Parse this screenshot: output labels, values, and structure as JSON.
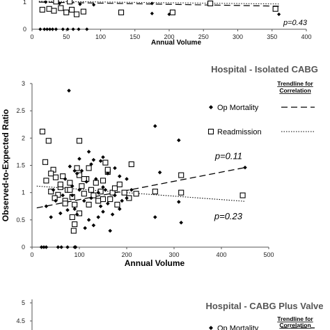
{
  "panels": {
    "top": {
      "xlabel": "Annual Volume",
      "pvalue": "p=0.43",
      "yticks": [
        "0",
        "1"
      ]
    },
    "bottom": {
      "title": "Hospital - CABG Plus Valve",
      "legend_header_line1": "Trendline for",
      "legend_header_line2": "Correlation",
      "legend_mortality": "Op Mortality",
      "yticks": [
        "5",
        "4.5"
      ]
    }
  },
  "chart_data": {
    "type": "scatter",
    "title": "Hospital - Isolated CABG",
    "xlabel": "Annual Volume",
    "ylabel": "Observed-to-Expected Ratio",
    "xlim": [
      0,
      500
    ],
    "ylim": [
      0,
      3
    ],
    "xticks": [
      0,
      100,
      200,
      300,
      400,
      500
    ],
    "yticks": [
      0,
      0.5,
      1,
      1.5,
      2,
      2.5,
      3
    ],
    "legend_header": [
      "Trendline for",
      "Correlation"
    ],
    "legend_placement": "top-right",
    "series": [
      {
        "name": "Op Mortality",
        "marker": "diamond",
        "color": "#000000",
        "trendline": "dashed",
        "pvalue": "p=0.11",
        "trend": [
          [
            10,
            0.72
          ],
          [
            450,
            1.46
          ]
        ],
        "points": [
          [
            20,
            0
          ],
          [
            25,
            0
          ],
          [
            30,
            0
          ],
          [
            55,
            0
          ],
          [
            62,
            0
          ],
          [
            75,
            0
          ],
          [
            90,
            0
          ],
          [
            92,
            0
          ],
          [
            78,
            2.87
          ],
          [
            260,
            2.22
          ],
          [
            310,
            1.96
          ],
          [
            270,
            1.37
          ],
          [
            310,
            0.83
          ],
          [
            315,
            0.45
          ],
          [
            260,
            0.55
          ],
          [
            450,
            1.46
          ],
          [
            40,
            0.55
          ],
          [
            60,
            0.62
          ],
          [
            75,
            0.68
          ],
          [
            30,
            0.75
          ],
          [
            50,
            0.85
          ],
          [
            65,
            0.95
          ],
          [
            45,
            1.05
          ],
          [
            85,
            1.12
          ],
          [
            70,
            1.25
          ],
          [
            95,
            1.35
          ],
          [
            80,
            1.48
          ],
          [
            100,
            1.62
          ],
          [
            120,
            1.75
          ],
          [
            90,
            0.7
          ],
          [
            110,
            0.85
          ],
          [
            125,
            0.9
          ],
          [
            140,
            1.0
          ],
          [
            150,
            1.1
          ],
          [
            135,
            1.25
          ],
          [
            160,
            1.35
          ],
          [
            175,
            1.45
          ],
          [
            150,
            1.65
          ],
          [
            130,
            1.6
          ],
          [
            105,
            1.4
          ],
          [
            115,
            1.2
          ],
          [
            100,
            1.05
          ],
          [
            85,
            0.95
          ],
          [
            95,
            0.6
          ],
          [
            120,
            0.5
          ],
          [
            130,
            0.4
          ],
          [
            145,
            0.75
          ],
          [
            165,
            0.3
          ],
          [
            170,
            0.6
          ],
          [
            185,
            0.7
          ],
          [
            190,
            0.85
          ],
          [
            200,
            0.9
          ],
          [
            210,
            1.05
          ],
          [
            200,
            1.25
          ],
          [
            185,
            1.3
          ],
          [
            175,
            0.95
          ],
          [
            160,
            0.8
          ],
          [
            150,
            0.65
          ],
          [
            140,
            0.55
          ],
          [
            112,
            0.35
          ],
          [
            125,
            1.52
          ],
          [
            145,
            1.58
          ],
          [
            155,
            1.05
          ],
          [
            90,
            1.4
          ]
        ]
      },
      {
        "name": "Readmission",
        "marker": "square",
        "color": "#000000",
        "trendline": "dotted",
        "pvalue": "p=0.23",
        "trend": [
          [
            10,
            1.12
          ],
          [
            450,
            0.84
          ]
        ],
        "points": [
          [
            22,
            2.12
          ],
          [
            35,
            1.95
          ],
          [
            28,
            1.56
          ],
          [
            45,
            1.42
          ],
          [
            30,
            1.22
          ],
          [
            50,
            1.28
          ],
          [
            40,
            1.02
          ],
          [
            60,
            1.1
          ],
          [
            55,
            0.96
          ],
          [
            70,
            0.85
          ],
          [
            65,
            1.3
          ],
          [
            75,
            1.05
          ],
          [
            80,
            1.18
          ],
          [
            85,
            0.92
          ],
          [
            90,
            0.78
          ],
          [
            85,
            0.55
          ],
          [
            90,
            0.42
          ],
          [
            88,
            0.3
          ],
          [
            95,
            1.45
          ],
          [
            100,
            1.32
          ],
          [
            105,
            1.12
          ],
          [
            110,
            0.98
          ],
          [
            115,
            1.25
          ],
          [
            120,
            1.45
          ],
          [
            125,
            1.05
          ],
          [
            130,
            0.95
          ],
          [
            135,
            1.18
          ],
          [
            140,
            0.85
          ],
          [
            145,
            1.02
          ],
          [
            150,
            1.22
          ],
          [
            155,
            1.55
          ],
          [
            160,
            1.38
          ],
          [
            165,
            0.88
          ],
          [
            170,
            1.0
          ],
          [
            175,
            1.08
          ],
          [
            185,
            1.15
          ],
          [
            195,
            1.0
          ],
          [
            205,
            0.9
          ],
          [
            210,
            1.52
          ],
          [
            220,
            0.98
          ],
          [
            260,
            1.02
          ],
          [
            315,
            1.32
          ],
          [
            315,
            1.0
          ],
          [
            445,
            0.95
          ],
          [
            80,
            1.05
          ],
          [
            100,
            0.62
          ],
          [
            60,
            1.15
          ],
          [
            40,
            1.35
          ],
          [
            70,
            0.8
          ],
          [
            110,
            1.25
          ],
          [
            120,
            0.78
          ],
          [
            150,
            0.88
          ],
          [
            180,
            0.78
          ],
          [
            48,
            0.9
          ],
          [
            100,
            1.95
          ],
          [
            160,
            1.42
          ]
        ]
      }
    ]
  }
}
